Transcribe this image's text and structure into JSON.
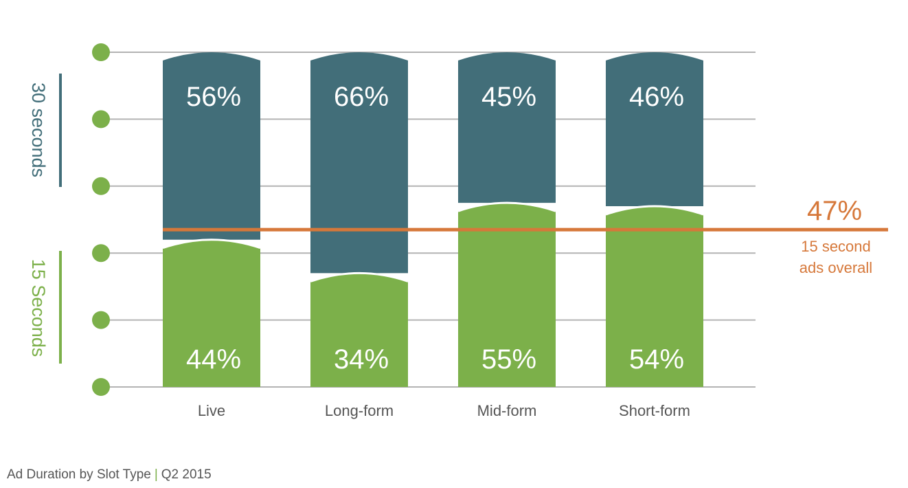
{
  "chart_data": {
    "type": "bar",
    "stacked": true,
    "categories": [
      "Live",
      "Long-form",
      "Mid-form",
      "Short-form"
    ],
    "series": [
      {
        "name": "15 Seconds",
        "values": [
          44,
          34,
          55,
          54
        ],
        "color": "#7cb04a",
        "labels": [
          "44%",
          "34%",
          "55%",
          "54%"
        ]
      },
      {
        "name": "30 seconds",
        "values": [
          56,
          66,
          45,
          46
        ],
        "color": "#426e79",
        "labels": [
          "56%",
          "66%",
          "45%",
          "46%"
        ]
      }
    ],
    "ylim": [
      0,
      100
    ],
    "grid": true,
    "reference_line": {
      "value": 47,
      "label": "47%",
      "caption_lines": [
        "15 second",
        "ads overall"
      ],
      "color": "#d6783a"
    }
  },
  "footer": {
    "title": "Ad Duration by Slot Type",
    "separator": "|",
    "period": "Q2 2015"
  }
}
